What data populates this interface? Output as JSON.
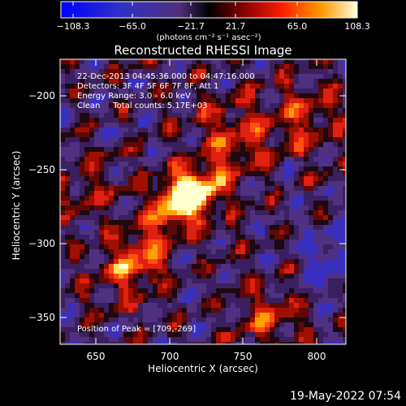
{
  "colorbar": {
    "tick_labels": [
      "−108.3",
      "−65.0",
      "−21.7",
      "21.7",
      "65.0",
      "108.3"
    ],
    "unit_text": "(photons cm⁻² s⁻¹ asec⁻²)",
    "range": [
      -108.3,
      108.3
    ]
  },
  "title": "Reconstructed RHESSI Image",
  "info": {
    "time_range": "22-Dec-2013 04:45:36.000 to 04:47:16.000",
    "detectors": "Detectors: 3F 4F 5F 6F 7F 8F, Att 1",
    "energy_range": "Energy Range: 3.0 - 6.0 keV",
    "algorithm_counts": "Clean     Total counts: 5.17E+03"
  },
  "peak_text": "Position of Peak = [709,-269]",
  "axes": {
    "xlabel": "Heliocentric X (arcsec)",
    "ylabel": "Heliocentric Y (arcsec)",
    "x_ticks": [
      "650",
      "700",
      "750",
      "800"
    ],
    "y_ticks": [
      "−200",
      "−250",
      "−300",
      "−350"
    ],
    "xlim": [
      626,
      820
    ],
    "ylim": [
      -371,
      -178
    ]
  },
  "footer_date": "19-May-2022 07:54",
  "colors": {
    "cmap_low": "#0000ff",
    "cmap_mid": "#000000",
    "cmap_high": "#ffffe0"
  }
}
